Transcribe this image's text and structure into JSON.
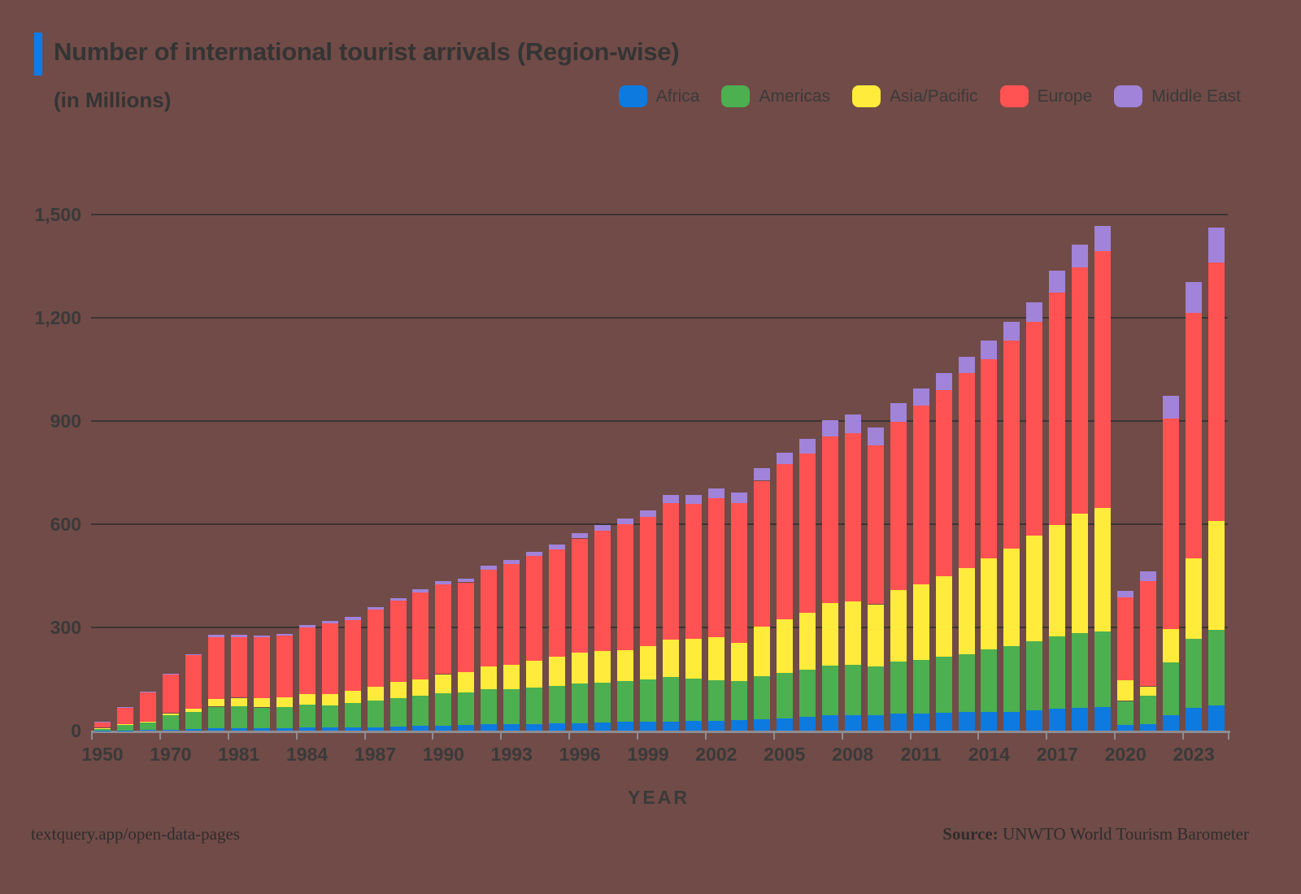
{
  "header": {
    "title": "Number of international tourist arrivals (Region-wise)",
    "subtitle": "(in Millions)",
    "accent_color": "#0d7ce8"
  },
  "footer": {
    "left": "textquery.app/open-data-pages",
    "source_label": "Source:",
    "source_value": "UNWTO World Tourism Barometer"
  },
  "chart_data": {
    "type": "bar",
    "stacked": true,
    "title": "Number of international tourist arrivals (Region-wise)",
    "subtitle": "(in Millions)",
    "xlabel": "YEAR",
    "ylabel": "",
    "grid": true,
    "legend_position": "top-right",
    "ylim": [
      0,
      1500
    ],
    "y_ticks": [
      {
        "value": 0,
        "label": "0"
      },
      {
        "value": 300,
        "label": "300"
      },
      {
        "value": 600,
        "label": "600"
      },
      {
        "value": 900,
        "label": "900"
      },
      {
        "value": 1200,
        "label": "1,200"
      },
      {
        "value": 1500,
        "label": "1,500"
      }
    ],
    "categories": [
      "1950",
      "1960",
      "1965",
      "1970",
      "1975",
      "1980",
      "1981",
      "1982",
      "1983",
      "1984",
      "1985",
      "1986",
      "1987",
      "1988",
      "1989",
      "1990",
      "1991",
      "1992",
      "1993",
      "1994",
      "1995",
      "1996",
      "1997",
      "1998",
      "1999",
      "2000",
      "2001",
      "2002",
      "2003",
      "2004",
      "2005",
      "2006",
      "2007",
      "2008",
      "2009",
      "2010",
      "2011",
      "2012",
      "2013",
      "2014",
      "2015",
      "2016",
      "2017",
      "2018",
      "2019",
      "2020",
      "2021",
      "2022",
      "2023",
      "2024"
    ],
    "labeled_categories": [
      "1950",
      "1970",
      "1981",
      "1984",
      "1987",
      "1990",
      "1993",
      "1996",
      "1999",
      "2002",
      "2005",
      "2008",
      "2011",
      "2014",
      "2017",
      "2020",
      "2023"
    ],
    "series": [
      {
        "name": "Africa",
        "color": "#0d7ae0",
        "values": [
          0.5,
          0.8,
          1.4,
          2.4,
          4.7,
          7.2,
          8.1,
          7.6,
          8.2,
          8.9,
          9.7,
          9.3,
          9.9,
          12.4,
          13.8,
          15.2,
          16.1,
          18.1,
          18.5,
          19.4,
          20.4,
          21.6,
          22.7,
          25.0,
          26.2,
          26.9,
          28.9,
          29.5,
          30.7,
          33.2,
          34.8,
          41.4,
          45.0,
          44.4,
          45.9,
          50.4,
          50.2,
          52.4,
          54.7,
          55.0,
          53.4,
          58.2,
          63.0,
          67.1,
          68.8,
          16.2,
          18.6,
          45.3,
          66.4,
          74.0
        ]
      },
      {
        "name": "Americas",
        "color": "#4caf50",
        "values": [
          7.5,
          16.7,
          23.2,
          42.3,
          50.0,
          62.3,
          62.5,
          59.7,
          59.9,
          67.4,
          64.3,
          70.9,
          76.6,
          82.0,
          86.9,
          92.8,
          95.3,
          102.2,
          102.4,
          105.1,
          109.0,
          114.5,
          116.2,
          119.1,
          121.9,
          128.2,
          122.1,
          116.6,
          113.1,
          125.7,
          133.3,
          135.8,
          144.1,
          147.8,
          140.6,
          150.2,
          156.0,
          162.7,
          167.5,
          181.0,
          192.6,
          200.9,
          210.8,
          215.7,
          219.3,
          69.9,
          83.0,
          153.0,
          201.0,
          219.0
        ]
      },
      {
        "name": "Asia/Pacific",
        "color": "#ffeb3b",
        "values": [
          0.2,
          0.9,
          2.1,
          6.2,
          10.2,
          23.0,
          25.1,
          26.3,
          27.8,
          30.1,
          32.9,
          36.2,
          41.9,
          47.6,
          48.6,
          56.2,
          58.7,
          65.5,
          71.1,
          78.8,
          85.0,
          90.4,
          92.5,
          89.4,
          98.7,
          110.1,
          115.7,
          124.9,
          112.2,
          143.4,
          154.6,
          165.8,
          182.0,
          184.1,
          180.9,
          208.2,
          218.2,
          233.5,
          249.8,
          264.3,
          284.1,
          308.1,
          323.1,
          347.7,
          360.1,
          59.3,
          27.0,
          96.0,
          234.0,
          316.0
        ]
      },
      {
        "name": "Europe",
        "color": "#ff5252",
        "values": [
          16.8,
          50.4,
          83.7,
          113.0,
          153.9,
          178.5,
          176.4,
          177.0,
          179.5,
          193.8,
          204.3,
          205.8,
          223.9,
          235.0,
          252.0,
          261.5,
          261.1,
          282.9,
          291.7,
          304.2,
          312.2,
          332.2,
          349.2,
          365.5,
          374.4,
          395.9,
          392.5,
          404.9,
          405.6,
          424.0,
          452.7,
          463.2,
          484.4,
          487.3,
          461.5,
          489.4,
          520.6,
          541.1,
          566.4,
          580.2,
          603.7,
          621.4,
          677.2,
          716.1,
          744.9,
          242.0,
          305.0,
          612.0,
          712.0,
          752.0
        ]
      },
      {
        "name": "Middle East",
        "color": "#a183d9",
        "values": [
          0.2,
          0.6,
          2.4,
          1.9,
          3.5,
          7.1,
          6.5,
          6.3,
          6.4,
          6.6,
          8.9,
          8.0,
          7.4,
          8.0,
          8.8,
          9.6,
          11.3,
          11.1,
          12.0,
          12.3,
          14.0,
          16.3,
          17.9,
          17.7,
          18.4,
          25.2,
          25.0,
          27.3,
          29.5,
          35.7,
          33.7,
          40.9,
          47.6,
          55.2,
          52.9,
          54.7,
          49.8,
          49.1,
          48.4,
          52.4,
          55.6,
          57.2,
          62.0,
          66.0,
          73.0,
          19.6,
          29.0,
          67.0,
          91.0,
          101.0
        ]
      }
    ]
  }
}
